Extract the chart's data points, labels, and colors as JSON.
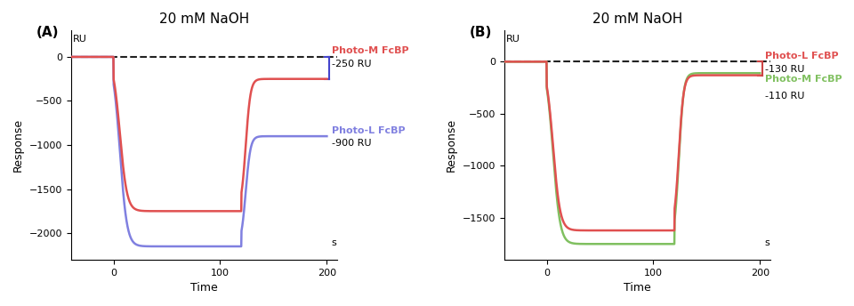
{
  "title": "20 mM NaOH",
  "xlabel": "Time",
  "ylabel": "Response",
  "xunit": "s",
  "yunit": "RU",
  "xlim": [
    -40,
    210
  ],
  "ylim_A": [
    -2300,
    300
  ],
  "ylim_B": [
    -1900,
    300
  ],
  "yticks_A": [
    0,
    -500,
    -1000,
    -1500,
    -2000
  ],
  "yticks_B": [
    0,
    -500,
    -1000,
    -1500
  ],
  "xticks": [
    0,
    100,
    200
  ],
  "panel_A": {
    "label": "(A)",
    "lines": {
      "photo_M": {
        "color": "#e05050",
        "label": "Photo-M FcBP",
        "ru_label": "-250 RU",
        "baseline": 0,
        "flat_level": -1750,
        "rise_time": 120,
        "final_level": -250
      },
      "photo_L": {
        "color": "#8080e0",
        "label": "Photo-L FcBP",
        "ru_label": "-900 RU",
        "baseline": 0,
        "flat_level": -2150,
        "rise_time": 120,
        "final_level": -900
      }
    }
  },
  "panel_B": {
    "label": "(B)",
    "lines": {
      "photo_L": {
        "color": "#e05050",
        "label": "Photo-L FcBP",
        "ru_label": "-130 RU",
        "baseline": 0,
        "flat_level": -1620,
        "rise_time": 120,
        "final_level": -130
      },
      "photo_M": {
        "color": "#80c060",
        "label": "Photo-M FcBP",
        "ru_label": "-110 RU",
        "baseline": 0,
        "flat_level": -1750,
        "rise_time": 120,
        "final_level": -110
      }
    }
  },
  "background_color": "#ffffff",
  "dashed_line_color": "#222222",
  "bracket_color_A": "#4444cc",
  "bracket_color_B": "#cc4444"
}
